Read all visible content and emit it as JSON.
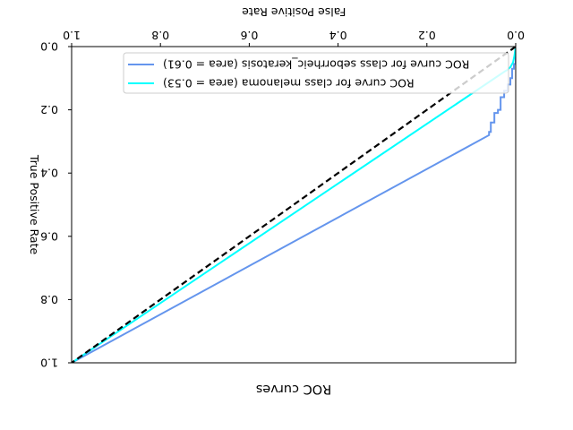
{
  "chart_data": {
    "type": "line",
    "title": "ROC curves",
    "xlabel": "False Positive Rate",
    "ylabel": "True Positive Rate",
    "xlim": [
      0.0,
      1.0
    ],
    "ylim": [
      0.0,
      1.0
    ],
    "xticks": [
      "0.0",
      "0.2",
      "0.4",
      "0.6",
      "0.8",
      "1.0"
    ],
    "yticks": [
      "0.0",
      "0.2",
      "0.4",
      "0.6",
      "0.8",
      "1.0"
    ],
    "x_axis_inverted": true,
    "y_axis_inverted": true,
    "image_rotated_180": true,
    "grid": false,
    "legend_position": "upper-left (as displayed)",
    "series": [
      {
        "name": "ROC curve for class seborrheic_keratosis (area = 0.61)",
        "color": "#6495ED",
        "x": [
          0.0,
          0.0,
          0.004,
          0.004,
          0.008,
          0.008,
          0.012,
          0.012,
          0.018,
          0.018,
          0.026,
          0.026,
          0.034,
          0.034,
          0.04,
          0.04,
          0.048,
          0.048,
          0.056,
          0.056,
          0.06,
          0.06,
          1.0
        ],
        "y": [
          0.0,
          0.055,
          0.055,
          0.07,
          0.07,
          0.1,
          0.1,
          0.12,
          0.12,
          0.14,
          0.14,
          0.16,
          0.16,
          0.2,
          0.2,
          0.21,
          0.21,
          0.24,
          0.24,
          0.27,
          0.27,
          0.28,
          1.0
        ]
      },
      {
        "name": "ROC curve for class melanoma (area = 0.53)",
        "color": "#00FFFF",
        "x": [
          0.0,
          0.003,
          0.006,
          0.012,
          0.02,
          0.024,
          1.0
        ],
        "y": [
          0.0,
          0.03,
          0.05,
          0.065,
          0.075,
          0.078,
          1.0
        ]
      },
      {
        "name": "",
        "color": "#000000",
        "dashed": true,
        "x": [
          0.0,
          1.0
        ],
        "y": [
          0.0,
          1.0
        ]
      }
    ]
  }
}
